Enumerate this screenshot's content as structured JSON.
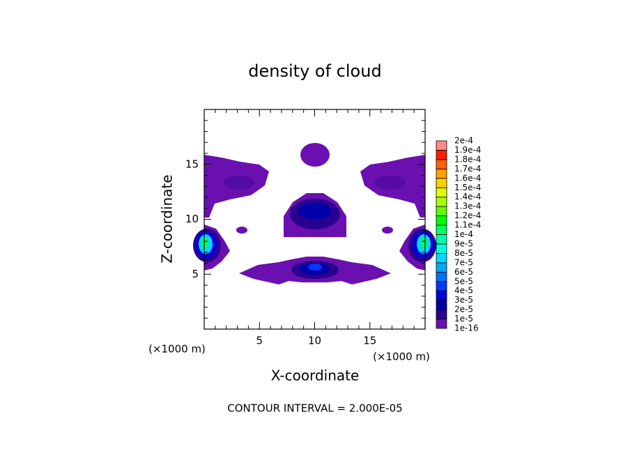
{
  "chart_data": {
    "type": "contour",
    "title": "density of cloud",
    "xlabel": "X-coordinate",
    "ylabel": "Z-coordinate",
    "xunit": "(×1000 m)",
    "yunit": "(×1000 m)",
    "xlim": [
      0,
      20
    ],
    "ylim": [
      0,
      20
    ],
    "xticks": [
      5,
      10,
      15
    ],
    "yticks": [
      5,
      10,
      15
    ],
    "xminorticks": [
      1,
      2,
      3,
      4,
      6,
      7,
      8,
      9,
      11,
      12,
      13,
      14,
      16,
      17,
      18,
      19
    ],
    "yminorticks": [
      1,
      2,
      3,
      4,
      6,
      7,
      8,
      9,
      11,
      12,
      13,
      14,
      16,
      17,
      18,
      19
    ],
    "colorbar": {
      "levels": [
        {
          "value": 1e-16,
          "label": "1e-16"
        },
        {
          "value": 1e-05,
          "label": "1e-5"
        },
        {
          "value": 2e-05,
          "label": "2e-5"
        },
        {
          "value": 3e-05,
          "label": "3e-5"
        },
        {
          "value": 4e-05,
          "label": "4e-5"
        },
        {
          "value": 5e-05,
          "label": "5e-5"
        },
        {
          "value": 6e-05,
          "label": "6e-5"
        },
        {
          "value": 7e-05,
          "label": "7e-5"
        },
        {
          "value": 8e-05,
          "label": "8e-5"
        },
        {
          "value": 9e-05,
          "label": "9e-5"
        },
        {
          "value": 0.0001,
          "label": "1e-4"
        },
        {
          "value": 0.00011,
          "label": "1.1e-4"
        },
        {
          "value": 0.00012,
          "label": "1.2e-4"
        },
        {
          "value": 0.00013,
          "label": "1.3e-4"
        },
        {
          "value": 0.00014,
          "label": "1.4e-4"
        },
        {
          "value": 0.00015,
          "label": "1.5e-4"
        },
        {
          "value": 0.00016,
          "label": "1.6e-4"
        },
        {
          "value": 0.00017,
          "label": "1.7e-4"
        },
        {
          "value": 0.00018,
          "label": "1.8e-4"
        },
        {
          "value": 0.00019,
          "label": "1.9e-4"
        },
        {
          "value": 0.0002,
          "label": "2e-4"
        }
      ],
      "colors": [
        "#6a10b0",
        "#2a0090",
        "#0000a8",
        "#0000d8",
        "#0038ff",
        "#0070ff",
        "#00a8ff",
        "#00d8ff",
        "#00ffe0",
        "#00ffa8",
        "#00ff60",
        "#00ff00",
        "#60ff00",
        "#a8ff00",
        "#e0ff00",
        "#ffd000",
        "#ffa000",
        "#ff6000",
        "#ff2000",
        "#ff8888"
      ]
    },
    "note": "CONTOUR INTERVAL = 2.000E-05"
  }
}
